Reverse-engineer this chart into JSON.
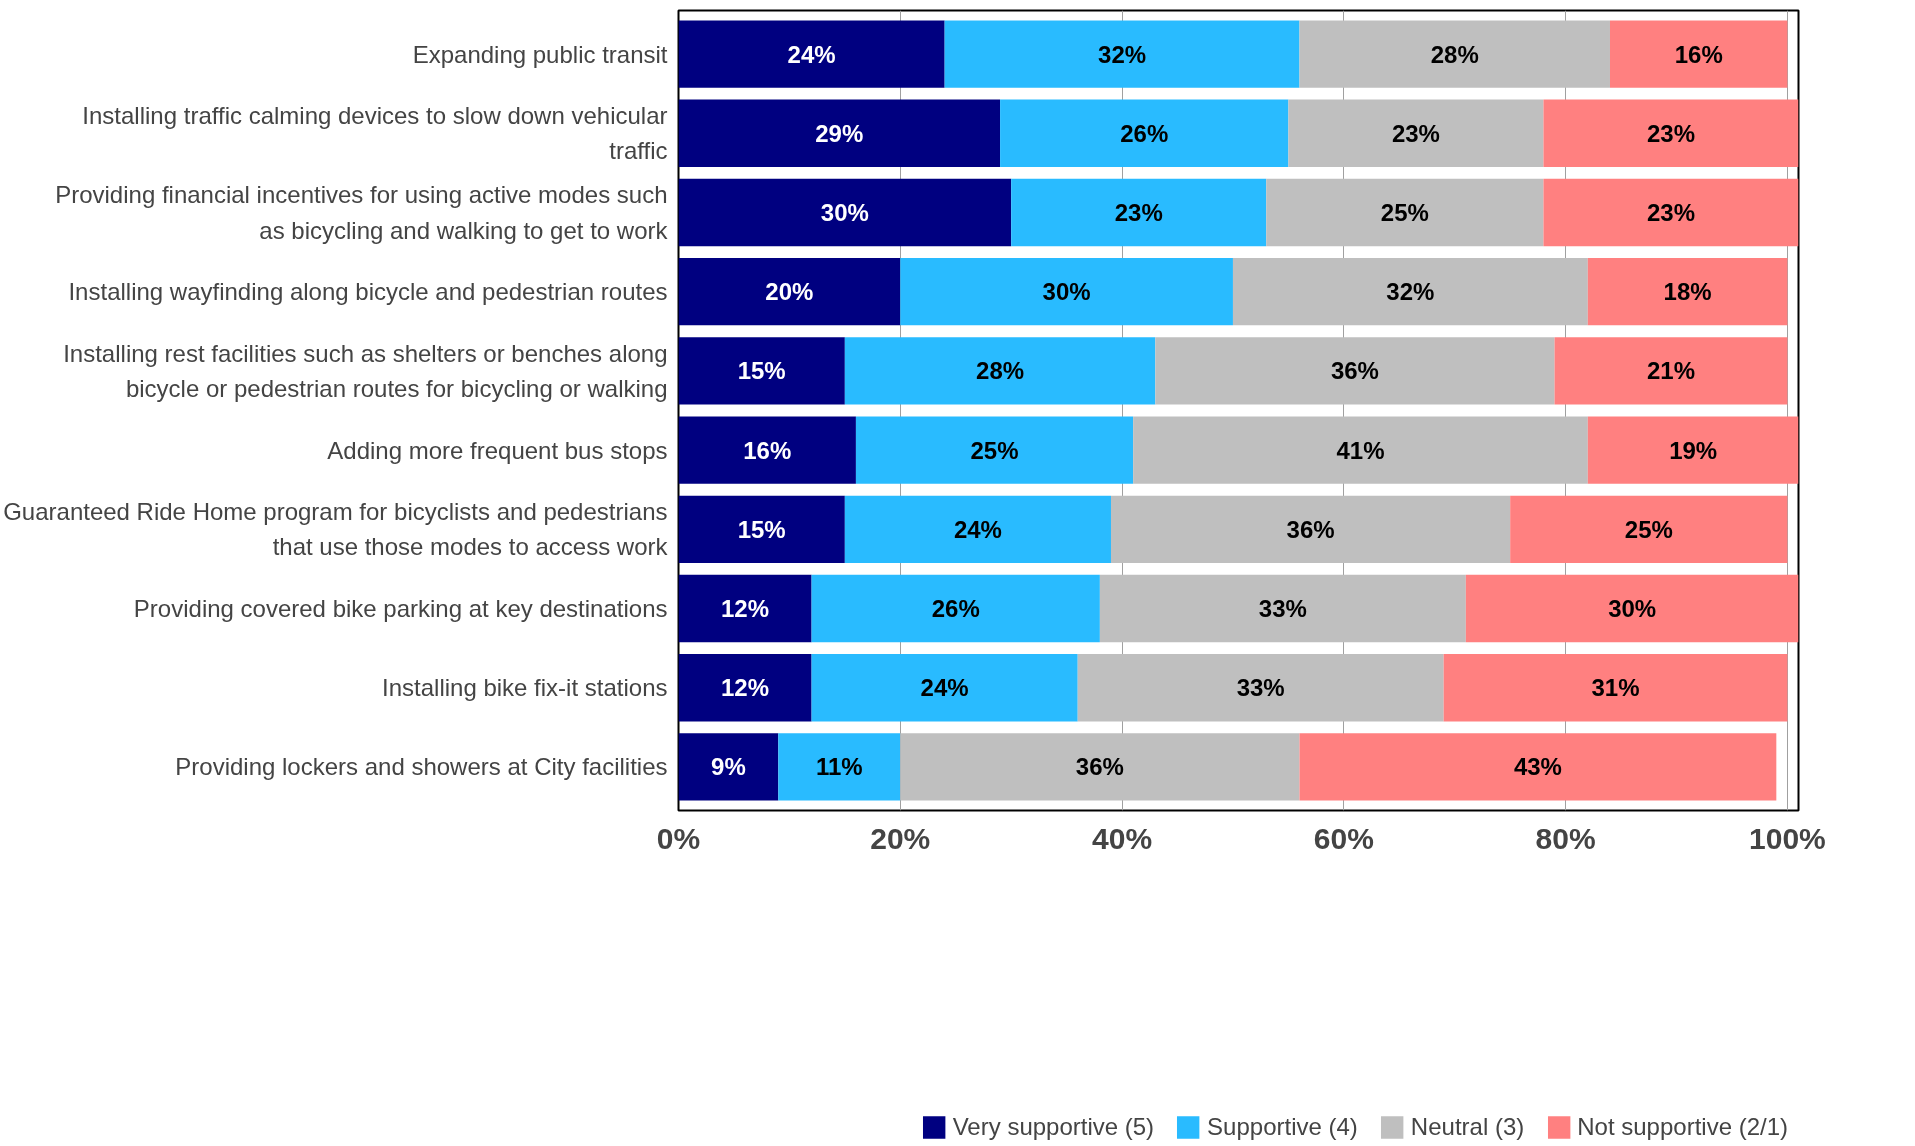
{
  "chart_data": {
    "type": "bar",
    "orientation": "horizontal",
    "stacked": true,
    "legend": "bottom",
    "grid": "x",
    "categories": [
      "Expanding public transit",
      "Installing traffic calming devices to slow down vehicular traffic",
      "Providing financial incentives for using active modes such as bicycling and walking to get to work",
      "Installing wayfinding along bicycle and pedestrian routes",
      "Installing rest facilities such as shelters or benches along bicycle or pedestrian routes for bicycling or walking",
      "Adding more frequent bus stops",
      "Guaranteed Ride Home program for bicyclists and pedestrians that use those modes to access work",
      "Providing covered bike parking at key destinations",
      "Installing bike fix-it stations",
      "Providing lockers and showers at City facilities"
    ],
    "xlim": [
      0,
      101
    ],
    "xticks": [
      {
        "value": 0,
        "label": "0%"
      },
      {
        "value": 20,
        "label": "20%"
      },
      {
        "value": 40,
        "label": "40%"
      },
      {
        "value": 60,
        "label": "60%"
      },
      {
        "value": 80,
        "label": "80%"
      },
      {
        "value": 100,
        "label": "100%"
      }
    ],
    "series": [
      {
        "name": "Very supportive (5)",
        "color": "#000080",
        "values": [
          24,
          29,
          30,
          20,
          15,
          16,
          15,
          12,
          12,
          9
        ],
        "value_labels": [
          "24%",
          "29%",
          "30%",
          "20%",
          "15%",
          "16%",
          "15%",
          "12%",
          "12%",
          "9%"
        ]
      },
      {
        "name": "Supportive (4)",
        "color": "#29bbff",
        "values": [
          32,
          26,
          23,
          30,
          28,
          25,
          24,
          26,
          24,
          11
        ],
        "value_labels": [
          "32%",
          "26%",
          "23%",
          "30%",
          "28%",
          "25%",
          "24%",
          "26%",
          "24%",
          "11%"
        ]
      },
      {
        "name": "Neutral (3)",
        "color": "#bfbfbf",
        "values": [
          28,
          23,
          25,
          32,
          36,
          41,
          36,
          33,
          33,
          36
        ],
        "value_labels": [
          "28%",
          "23%",
          "25%",
          "32%",
          "36%",
          "41%",
          "36%",
          "33%",
          "33%",
          "36%"
        ]
      },
      {
        "name": "Not supportive (2/1)",
        "color": "#ff8080",
        "values": [
          16,
          23,
          23,
          18,
          21,
          19,
          25,
          30,
          31,
          43
        ],
        "value_labels": [
          "16%",
          "23%",
          "23%",
          "18%",
          "21%",
          "19%",
          "25%",
          "30%",
          "31%",
          "43%"
        ]
      }
    ]
  }
}
